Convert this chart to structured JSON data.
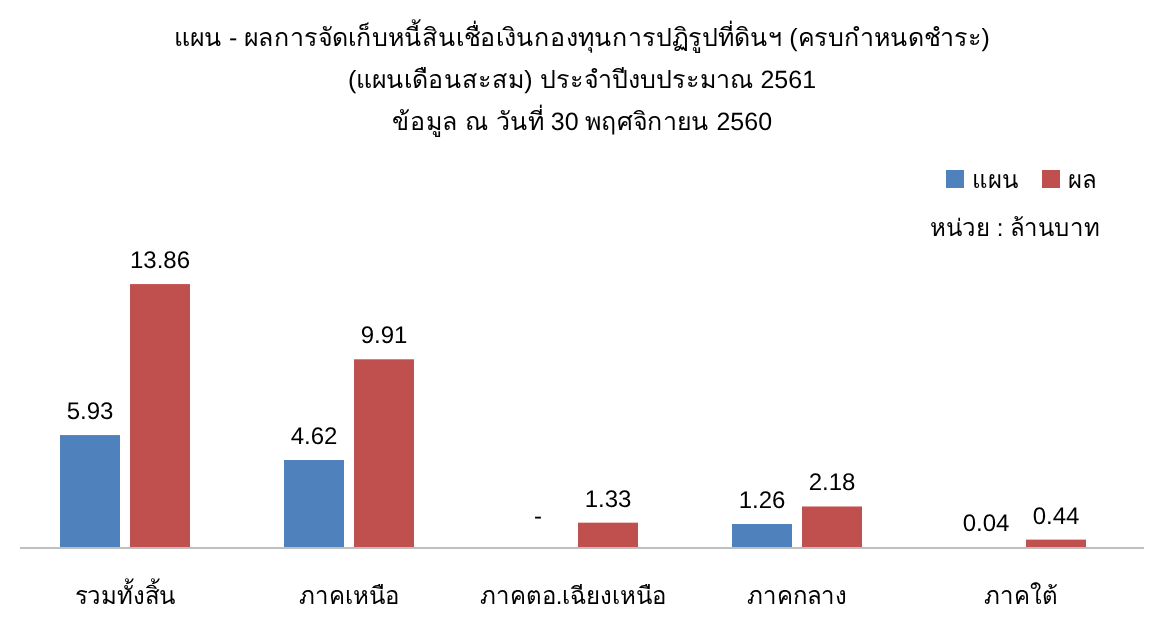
{
  "chart_data": {
    "type": "bar",
    "title": "แผน - ผลการจัดเก็บหนี้สินเชื่อเงินกองทุนการปฏิรูปที่ดินฯ  (ครบกำหนดชำระ)",
    "subtitle": "(แผนเดือนสะสม)   ประจำปีงบประมาณ  2561\nข้อมูล ณ วันที่ 30 พฤศจิกายน  2560",
    "categories": [
      "รวมทั้งสิ้น",
      "ภาคเหนือ",
      "ภาคตอ.เฉียงเหนือ",
      "ภาคกลาง",
      "ภาคใต้"
    ],
    "series": [
      {
        "name": "แผน",
        "color": "#4f81bd",
        "values": [
          5.93,
          4.62,
          null,
          1.26,
          0.04
        ],
        "value_labels": [
          "5.93",
          "4.62",
          "-",
          "1.26",
          "0.04"
        ]
      },
      {
        "name": "ผล",
        "color": "#c0504d",
        "values": [
          13.86,
          9.91,
          1.33,
          2.18,
          0.44
        ],
        "value_labels": [
          "13.86",
          "9.91",
          "1.33",
          "2.18",
          "0.44"
        ]
      }
    ],
    "annotations": [
      "หน่วย : ล้านบาท"
    ],
    "legend": "top right"
  }
}
